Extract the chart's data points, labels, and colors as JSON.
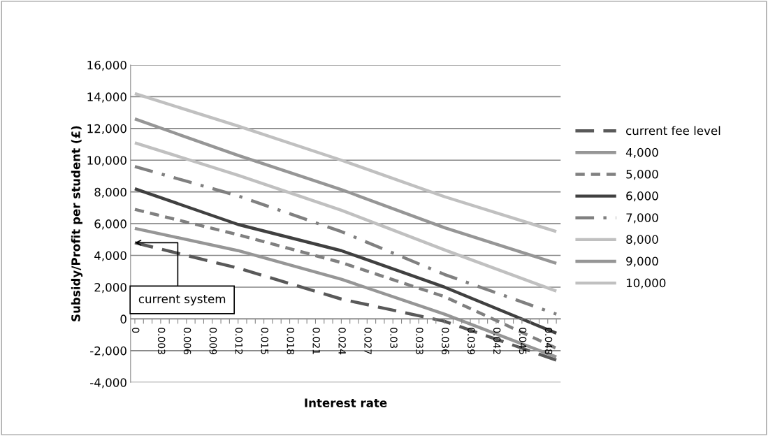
{
  "chart_data": {
    "type": "line",
    "xlabel": "Interest rate",
    "ylabel": "Subsidy/Profit per student (£)",
    "x": [
      0,
      0.012,
      0.024,
      0.036,
      0.049
    ],
    "series": [
      {
        "name": "current fee level",
        "color": "#595959",
        "line_style": "dashed",
        "values": [
          4800,
          3200,
          1250,
          -150,
          -2600
        ]
      },
      {
        "name": "4,000",
        "color": "#969696",
        "line_style": "solid",
        "values": [
          5700,
          4300,
          2500,
          300,
          -2400
        ]
      },
      {
        "name": "5,000",
        "color": "#808080",
        "line_style": "short dashed",
        "values": [
          6900,
          5300,
          3550,
          1400,
          -1850
        ]
      },
      {
        "name": "6,000",
        "color": "#404040",
        "line_style": "solid",
        "values": [
          8200,
          5950,
          4300,
          2000,
          -900
        ]
      },
      {
        "name": "7,000",
        "color": "#808080",
        "line_style": "dashdot",
        "values": [
          9600,
          7750,
          5500,
          2800,
          300
        ]
      },
      {
        "name": "8,000",
        "color": "#c0c0c0",
        "line_style": "solid",
        "values": [
          11100,
          9050,
          6850,
          4350,
          1750
        ]
      },
      {
        "name": "9,000",
        "color": "#969696",
        "line_style": "solid",
        "values": [
          12600,
          10300,
          8150,
          5750,
          3500
        ]
      },
      {
        "name": "10,000",
        "color": "#c0c0c0",
        "line_style": "solid",
        "values": [
          14200,
          12150,
          10000,
          7700,
          5500
        ]
      }
    ],
    "xlim": [
      -0.0005,
      0.0495
    ],
    "xticks": [
      0,
      {
        "value": 0.001,
        "label": null
      },
      {
        "value": 0.002,
        "label": null
      },
      0.003,
      {
        "value": 0.004,
        "label": null
      },
      {
        "value": 0.005,
        "label": null
      },
      0.006,
      {
        "value": 0.007,
        "label": null
      },
      {
        "value": 0.008,
        "label": null
      },
      0.009,
      {
        "value": 0.01,
        "label": null
      },
      {
        "value": 0.011,
        "label": null
      },
      0.012,
      {
        "value": 0.013,
        "label": null
      },
      {
        "value": 0.014,
        "label": null
      },
      0.015,
      {
        "value": 0.016,
        "label": null
      },
      {
        "value": 0.017,
        "label": null
      },
      0.018,
      {
        "value": 0.019,
        "label": null
      },
      {
        "value": 0.02,
        "label": null
      },
      0.021,
      {
        "value": 0.022,
        "label": null
      },
      {
        "value": 0.023,
        "label": null
      },
      0.024,
      {
        "value": 0.025,
        "label": null
      },
      {
        "value": 0.026,
        "label": null
      },
      0.027,
      {
        "value": 0.028,
        "label": null
      },
      {
        "value": 0.029,
        "label": null
      },
      0.03,
      {
        "value": 0.031,
        "label": null
      },
      {
        "value": 0.032,
        "label": null
      },
      0.033,
      {
        "value": 0.034,
        "label": null
      },
      {
        "value": 0.035,
        "label": null
      },
      0.036,
      {
        "value": 0.037,
        "label": null
      },
      {
        "value": 0.038,
        "label": null
      },
      0.039,
      {
        "value": 0.04,
        "label": null
      },
      {
        "value": 0.041,
        "label": null
      },
      0.042,
      {
        "value": 0.043,
        "label": null
      },
      {
        "value": 0.044,
        "label": null
      },
      0.045,
      {
        "value": 0.046,
        "label": null
      },
      {
        "value": 0.047,
        "label": null
      },
      0.048,
      {
        "value": 0.049,
        "label": null
      }
    ],
    "ylim": [
      -4000,
      16000
    ],
    "yticks": [
      {
        "value": -4000,
        "label": "-4,000"
      },
      {
        "value": -2000,
        "label": "-2,000"
      },
      0,
      {
        "value": 2000,
        "label": "2,000"
      },
      {
        "value": 4000,
        "label": "4,000"
      },
      {
        "value": 6000,
        "label": "6,000"
      },
      {
        "value": 8000,
        "label": "8,000"
      },
      {
        "value": 10000,
        "label": "10,000"
      },
      {
        "value": 12000,
        "label": "12,000"
      },
      {
        "value": 14000,
        "label": "14,000"
      },
      {
        "value": 16000,
        "label": "16,000"
      }
    ],
    "grid": "y",
    "legend": "right",
    "marker": "none",
    "annotations": [
      {
        "text": "current system",
        "x": 0,
        "y": 4800
      }
    ]
  }
}
